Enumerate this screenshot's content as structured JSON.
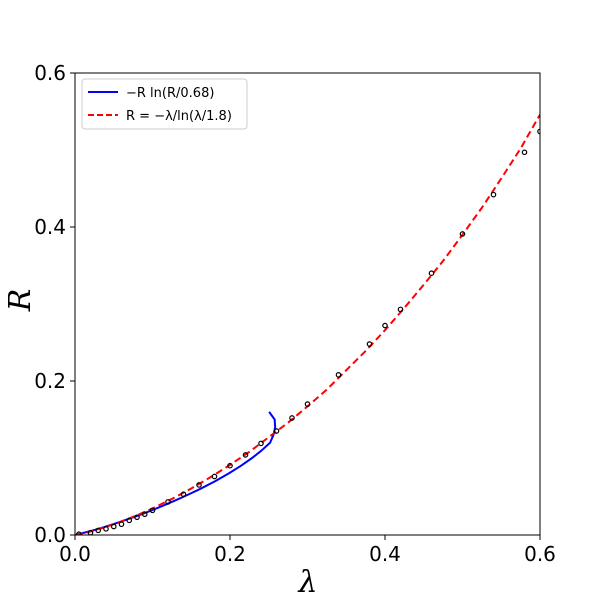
{
  "chart_data": {
    "type": "line",
    "xlabel": "λ",
    "ylabel": "R",
    "xlim": [
      0,
      0.6
    ],
    "ylim": [
      0,
      0.6
    ],
    "xticks": [
      "0.0",
      "0.2",
      "0.4",
      "0.6"
    ],
    "yticks": [
      "0.0",
      "0.2",
      "0.4",
      "0.6"
    ],
    "grid": false,
    "legend_position": "top-left",
    "series": [
      {
        "name": "−R ln(R/0.68)",
        "kind": "line",
        "style": "solid",
        "color": "#0000ff",
        "x": [
          0,
          0.0197,
          0.0367,
          0.0523,
          0.0668,
          0.0806,
          0.0937,
          0.1062,
          0.1182,
          0.1297,
          0.1408,
          0.1515,
          0.1618,
          0.181,
          0.1985,
          0.2143,
          0.2285,
          0.241,
          0.2518,
          0.2561,
          0.2583,
          0.2576,
          0.2505
        ],
        "y": [
          0,
          0.005,
          0.01,
          0.015,
          0.02,
          0.025,
          0.03,
          0.035,
          0.04,
          0.045,
          0.05,
          0.055,
          0.06,
          0.07,
          0.08,
          0.09,
          0.1,
          0.11,
          0.12,
          0.13,
          0.14,
          0.15,
          0.16
        ]
      },
      {
        "name": "R = −λ/ln(λ/1.8)",
        "kind": "line",
        "style": "dashed",
        "color": "#ff0000",
        "x": [
          0.001,
          0.01,
          0.02,
          0.04,
          0.06,
          0.08,
          0.1,
          0.125,
          0.15,
          0.175,
          0.2,
          0.225,
          0.25,
          0.275,
          0.3,
          0.325,
          0.35,
          0.375,
          0.4,
          0.425,
          0.45,
          0.475,
          0.5,
          0.525,
          0.55,
          0.575,
          0.6
        ],
        "y": [
          0.000133,
          0.00193,
          0.00443,
          0.0105,
          0.0176,
          0.0256,
          0.0346,
          0.0468,
          0.0604,
          0.0752,
          0.091,
          0.108,
          0.127,
          0.146,
          0.167,
          0.189,
          0.214,
          0.239,
          0.266,
          0.295,
          0.325,
          0.356,
          0.39,
          0.425,
          0.463,
          0.502,
          0.546
        ]
      },
      {
        "name": "",
        "kind": "scatter",
        "color": "#000000",
        "x": [
          0.005,
          0.02,
          0.03,
          0.04,
          0.05,
          0.06,
          0.07,
          0.08,
          0.09,
          0.1,
          0.12,
          0.14,
          0.16,
          0.18,
          0.2,
          0.22,
          0.24,
          0.26,
          0.28,
          0.3,
          0.34,
          0.38,
          0.4,
          0.42,
          0.46,
          0.5,
          0.54,
          0.58,
          0.6
        ],
        "y": [
          0.001,
          0.003,
          0.006,
          0.008,
          0.011,
          0.014,
          0.019,
          0.023,
          0.027,
          0.032,
          0.043,
          0.053,
          0.065,
          0.076,
          0.09,
          0.104,
          0.119,
          0.135,
          0.152,
          0.17,
          0.208,
          0.248,
          0.272,
          0.293,
          0.34,
          0.391,
          0.442,
          0.497,
          0.524
        ]
      }
    ]
  }
}
